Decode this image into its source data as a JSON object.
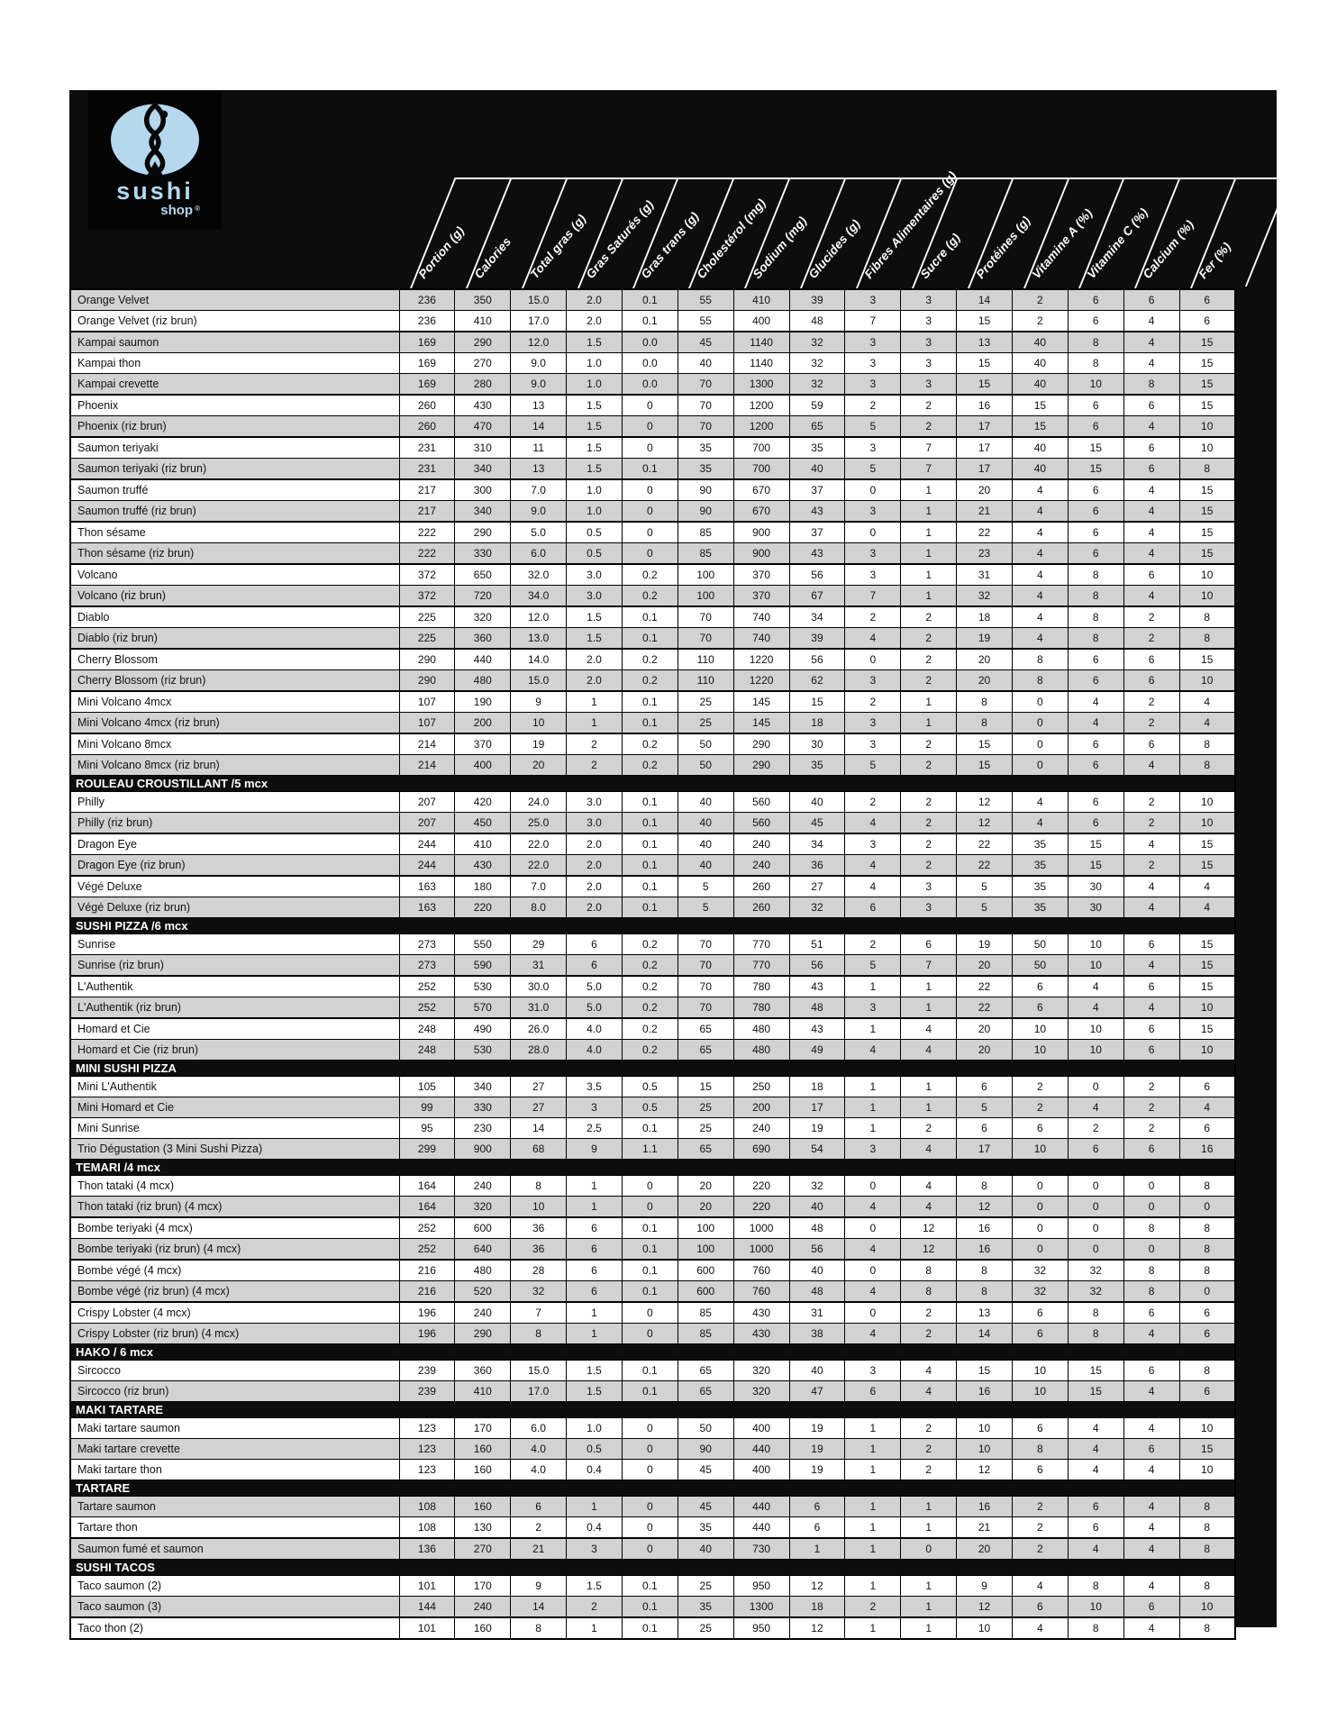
{
  "brand": {
    "wordmark_top": "sushi",
    "wordmark_bottom": "shop",
    "registered_mark": "®"
  },
  "colors": {
    "logo_blue": "#b5d8ee",
    "row_gray": "#d2d2d2",
    "band_black": "#0d0d0d",
    "row_white": "#ffffff"
  },
  "columns": [
    "Portion (g)",
    "Calories",
    "Total gras (g)",
    "Gras Saturés (g)",
    "Gras trans (g)",
    "Cholestérol (mg)",
    "Sodium (mg)",
    "Glucides (g)",
    "Fibres Alimentaires (g)",
    "Sucre (g)",
    "Protéines (g)",
    "Vitamine A (%)",
    "Vitamine C (%)",
    "Calcium (%)",
    "Fer (%)"
  ],
  "rows": [
    {
      "t": "i",
      "n": "Orange Velvet",
      "v": [
        "236",
        "350",
        "15.0",
        "2.0",
        "0.1",
        "55",
        "410",
        "39",
        "3",
        "3",
        "14",
        "2",
        "6",
        "6",
        "6"
      ]
    },
    {
      "t": "i",
      "n": "Orange Velvet (riz brun)",
      "v": [
        "236",
        "410",
        "17.0",
        "2.0",
        "0.1",
        "55",
        "400",
        "48",
        "7",
        "3",
        "15",
        "2",
        "6",
        "4",
        "6"
      ]
    },
    {
      "t": "i",
      "sep": true,
      "n": "Kampai saumon",
      "v": [
        "169",
        "290",
        "12.0",
        "1.5",
        "0.0",
        "45",
        "1140",
        "32",
        "3",
        "3",
        "13",
        "40",
        "8",
        "4",
        "15"
      ]
    },
    {
      "t": "i",
      "n": "Kampai thon",
      "v": [
        "169",
        "270",
        "9.0",
        "1.0",
        "0.0",
        "40",
        "1140",
        "32",
        "3",
        "3",
        "15",
        "40",
        "8",
        "4",
        "15"
      ]
    },
    {
      "t": "i",
      "n": "Kampai crevette",
      "v": [
        "169",
        "280",
        "9.0",
        "1.0",
        "0.0",
        "70",
        "1300",
        "32",
        "3",
        "3",
        "15",
        "40",
        "10",
        "8",
        "15"
      ]
    },
    {
      "t": "i",
      "sep": true,
      "n": "Phoenix",
      "v": [
        "260",
        "430",
        "13",
        "1.5",
        "0",
        "70",
        "1200",
        "59",
        "2",
        "2",
        "16",
        "15",
        "6",
        "6",
        "15"
      ]
    },
    {
      "t": "i",
      "n": "Phoenix (riz brun)",
      "v": [
        "260",
        "470",
        "14",
        "1.5",
        "0",
        "70",
        "1200",
        "65",
        "5",
        "2",
        "17",
        "15",
        "6",
        "4",
        "10"
      ]
    },
    {
      "t": "i",
      "sep": true,
      "n": "Saumon teriyaki",
      "v": [
        "231",
        "310",
        "11",
        "1.5",
        "0",
        "35",
        "700",
        "35",
        "3",
        "7",
        "17",
        "40",
        "15",
        "6",
        "10"
      ]
    },
    {
      "t": "i",
      "n": "Saumon teriyaki (riz brun)",
      "v": [
        "231",
        "340",
        "13",
        "1.5",
        "0.1",
        "35",
        "700",
        "40",
        "5",
        "7",
        "17",
        "40",
        "15",
        "6",
        "8"
      ]
    },
    {
      "t": "i",
      "sep": true,
      "n": "Saumon truffé",
      "v": [
        "217",
        "300",
        "7.0",
        "1.0",
        "0",
        "90",
        "670",
        "37",
        "0",
        "1",
        "20",
        "4",
        "6",
        "4",
        "15"
      ]
    },
    {
      "t": "i",
      "n": "Saumon truffé  (riz brun)",
      "v": [
        "217",
        "340",
        "9.0",
        "1.0",
        "0",
        "90",
        "670",
        "43",
        "3",
        "1",
        "21",
        "4",
        "6",
        "4",
        "15"
      ]
    },
    {
      "t": "i",
      "sep": true,
      "n": "Thon sésame",
      "v": [
        "222",
        "290",
        "5.0",
        "0.5",
        "0",
        "85",
        "900",
        "37",
        "0",
        "1",
        "22",
        "4",
        "6",
        "4",
        "15"
      ]
    },
    {
      "t": "i",
      "n": "Thon sésame (riz brun)",
      "v": [
        "222",
        "330",
        "6.0",
        "0.5",
        "0",
        "85",
        "900",
        "43",
        "3",
        "1",
        "23",
        "4",
        "6",
        "4",
        "15"
      ]
    },
    {
      "t": "i",
      "sep": true,
      "n": "Volcano",
      "v": [
        "372",
        "650",
        "32.0",
        "3.0",
        "0.2",
        "100",
        "370",
        "56",
        "3",
        "1",
        "31",
        "4",
        "8",
        "6",
        "10"
      ]
    },
    {
      "t": "i",
      "n": "Volcano (riz brun)",
      "v": [
        "372",
        "720",
        "34.0",
        "3.0",
        "0.2",
        "100",
        "370",
        "67",
        "7",
        "1",
        "32",
        "4",
        "8",
        "4",
        "10"
      ]
    },
    {
      "t": "i",
      "sep": true,
      "n": "Diablo",
      "v": [
        "225",
        "320",
        "12.0",
        "1.5",
        "0.1",
        "70",
        "740",
        "34",
        "2",
        "2",
        "18",
        "4",
        "8",
        "2",
        "8"
      ]
    },
    {
      "t": "i",
      "n": "Diablo (riz brun)",
      "v": [
        "225",
        "360",
        "13.0",
        "1.5",
        "0.1",
        "70",
        "740",
        "39",
        "4",
        "2",
        "19",
        "4",
        "8",
        "2",
        "8"
      ]
    },
    {
      "t": "i",
      "sep": true,
      "n": "Cherry Blossom",
      "v": [
        "290",
        "440",
        "14.0",
        "2.0",
        "0.2",
        "110",
        "1220",
        "56",
        "0",
        "2",
        "20",
        "8",
        "6",
        "6",
        "15"
      ]
    },
    {
      "t": "i",
      "n": "Cherry Blossom (riz brun)",
      "v": [
        "290",
        "480",
        "15.0",
        "2.0",
        "0.2",
        "110",
        "1220",
        "62",
        "3",
        "2",
        "20",
        "8",
        "6",
        "6",
        "10"
      ]
    },
    {
      "t": "i",
      "sep": true,
      "n": "Mini Volcano 4mcx",
      "v": [
        "107",
        "190",
        "9",
        "1",
        "0.1",
        "25",
        "145",
        "15",
        "2",
        "1",
        "8",
        "0",
        "4",
        "2",
        "4"
      ]
    },
    {
      "t": "i",
      "n": "Mini Volcano 4mcx (riz brun)",
      "v": [
        "107",
        "200",
        "10",
        "1",
        "0.1",
        "25",
        "145",
        "18",
        "3",
        "1",
        "8",
        "0",
        "4",
        "2",
        "4"
      ]
    },
    {
      "t": "i",
      "sep": true,
      "n": "Mini Volcano 8mcx",
      "v": [
        "214",
        "370",
        "19",
        "2",
        "0.2",
        "50",
        "290",
        "30",
        "3",
        "2",
        "15",
        "0",
        "6",
        "6",
        "8"
      ]
    },
    {
      "t": "i",
      "n": "Mini Volcano 8mcx (riz brun)",
      "v": [
        "214",
        "400",
        "20",
        "2",
        "0.2",
        "50",
        "290",
        "35",
        "5",
        "2",
        "15",
        "0",
        "6",
        "4",
        "8"
      ]
    },
    {
      "t": "s",
      "n": "ROULEAU CROUSTILLANT /5 mcx"
    },
    {
      "t": "i",
      "n": "Philly",
      "v": [
        "207",
        "420",
        "24.0",
        "3.0",
        "0.1",
        "40",
        "560",
        "40",
        "2",
        "2",
        "12",
        "4",
        "6",
        "2",
        "10"
      ]
    },
    {
      "t": "i",
      "n": "Philly (riz brun)",
      "v": [
        "207",
        "450",
        "25.0",
        "3.0",
        "0.1",
        "40",
        "560",
        "45",
        "4",
        "2",
        "12",
        "4",
        "6",
        "2",
        "10"
      ]
    },
    {
      "t": "i",
      "sep": true,
      "n": "Dragon Eye",
      "v": [
        "244",
        "410",
        "22.0",
        "2.0",
        "0.1",
        "40",
        "240",
        "34",
        "3",
        "2",
        "22",
        "35",
        "15",
        "4",
        "15"
      ]
    },
    {
      "t": "i",
      "n": "Dragon Eye (riz brun)",
      "v": [
        "244",
        "430",
        "22.0",
        "2.0",
        "0.1",
        "40",
        "240",
        "36",
        "4",
        "2",
        "22",
        "35",
        "15",
        "2",
        "15"
      ]
    },
    {
      "t": "i",
      "sep": true,
      "n": "Végé Deluxe",
      "v": [
        "163",
        "180",
        "7.0",
        "2.0",
        "0.1",
        "5",
        "260",
        "27",
        "4",
        "3",
        "5",
        "35",
        "30",
        "4",
        "4"
      ]
    },
    {
      "t": "i",
      "n": "Végé Deluxe (riz brun)",
      "v": [
        "163",
        "220",
        "8.0",
        "2.0",
        "0.1",
        "5",
        "260",
        "32",
        "6",
        "3",
        "5",
        "35",
        "30",
        "4",
        "4"
      ]
    },
    {
      "t": "s",
      "n": "SUSHI PIZZA /6 mcx"
    },
    {
      "t": "i",
      "n": "Sunrise",
      "v": [
        "273",
        "550",
        "29",
        "6",
        "0.2",
        "70",
        "770",
        "51",
        "2",
        "6",
        "19",
        "50",
        "10",
        "6",
        "15"
      ]
    },
    {
      "t": "i",
      "n": "Sunrise (riz brun)",
      "v": [
        "273",
        "590",
        "31",
        "6",
        "0.2",
        "70",
        "770",
        "56",
        "5",
        "7",
        "20",
        "50",
        "10",
        "4",
        "15"
      ]
    },
    {
      "t": "i",
      "sep": true,
      "n": "L'Authentik",
      "v": [
        "252",
        "530",
        "30.0",
        "5.0",
        "0.2",
        "70",
        "780",
        "43",
        "1",
        "1",
        "22",
        "6",
        "4",
        "6",
        "15"
      ]
    },
    {
      "t": "i",
      "n": "L'Authentik (riz brun)",
      "v": [
        "252",
        "570",
        "31.0",
        "5.0",
        "0.2",
        "70",
        "780",
        "48",
        "3",
        "1",
        "22",
        "6",
        "4",
        "4",
        "10"
      ]
    },
    {
      "t": "i",
      "sep": true,
      "n": "Homard et Cie",
      "v": [
        "248",
        "490",
        "26.0",
        "4.0",
        "0.2",
        "65",
        "480",
        "43",
        "1",
        "4",
        "20",
        "10",
        "10",
        "6",
        "15"
      ]
    },
    {
      "t": "i",
      "n": "Homard et Cie (riz brun)",
      "v": [
        "248",
        "530",
        "28.0",
        "4.0",
        "0.2",
        "65",
        "480",
        "49",
        "4",
        "4",
        "20",
        "10",
        "10",
        "6",
        "10"
      ]
    },
    {
      "t": "s",
      "n": "MINI SUSHI PIZZA"
    },
    {
      "t": "i",
      "n": "Mini L'Authentik",
      "v": [
        "105",
        "340",
        "27",
        "3.5",
        "0.5",
        "15",
        "250",
        "18",
        "1",
        "1",
        "6",
        "2",
        "0",
        "2",
        "6"
      ]
    },
    {
      "t": "i",
      "n": "Mini Homard et Cie",
      "v": [
        "99",
        "330",
        "27",
        "3",
        "0.5",
        "25",
        "200",
        "17",
        "1",
        "1",
        "5",
        "2",
        "4",
        "2",
        "4"
      ]
    },
    {
      "t": "i",
      "n": "Mini Sunrise",
      "v": [
        "95",
        "230",
        "14",
        "2.5",
        "0.1",
        "25",
        "240",
        "19",
        "1",
        "2",
        "6",
        "6",
        "2",
        "2",
        "6"
      ]
    },
    {
      "t": "i",
      "n": "Trio Dégustation (3 Mini Sushi Pizza)",
      "v": [
        "299",
        "900",
        "68",
        "9",
        "1.1",
        "65",
        "690",
        "54",
        "3",
        "4",
        "17",
        "10",
        "6",
        "6",
        "16"
      ]
    },
    {
      "t": "s",
      "n": "TEMARI /4 mcx"
    },
    {
      "t": "i",
      "n": "Thon tataki (4 mcx)",
      "v": [
        "164",
        "240",
        "8",
        "1",
        "0",
        "20",
        "220",
        "32",
        "0",
        "4",
        "8",
        "0",
        "0",
        "0",
        "8"
      ]
    },
    {
      "t": "i",
      "n": "Thon tataki (riz brun) (4 mcx)",
      "v": [
        "164",
        "320",
        "10",
        "1",
        "0",
        "20",
        "220",
        "40",
        "4",
        "4",
        "12",
        "0",
        "0",
        "0",
        "0"
      ]
    },
    {
      "t": "i",
      "sep": true,
      "n": "Bombe teriyaki (4 mcx)",
      "v": [
        "252",
        "600",
        "36",
        "6",
        "0.1",
        "100",
        "1000",
        "48",
        "0",
        "12",
        "16",
        "0",
        "0",
        "8",
        "8"
      ]
    },
    {
      "t": "i",
      "n": "Bombe teriyaki (riz brun) (4 mcx)",
      "v": [
        "252",
        "640",
        "36",
        "6",
        "0.1",
        "100",
        "1000",
        "56",
        "4",
        "12",
        "16",
        "0",
        "0",
        "0",
        "8"
      ]
    },
    {
      "t": "i",
      "sep": true,
      "n": "Bombe végé (4 mcx)",
      "v": [
        "216",
        "480",
        "28",
        "6",
        "0.1",
        "600",
        "760",
        "40",
        "0",
        "8",
        "8",
        "32",
        "32",
        "8",
        "8"
      ]
    },
    {
      "t": "i",
      "n": "Bombe végé (riz brun) (4 mcx)",
      "v": [
        "216",
        "520",
        "32",
        "6",
        "0.1",
        "600",
        "760",
        "48",
        "4",
        "8",
        "8",
        "32",
        "32",
        "8",
        "0"
      ]
    },
    {
      "t": "i",
      "sep": true,
      "n": "Crispy Lobster (4 mcx)",
      "v": [
        "196",
        "240",
        "7",
        "1",
        "0",
        "85",
        "430",
        "31",
        "0",
        "2",
        "13",
        "6",
        "8",
        "6",
        "6"
      ]
    },
    {
      "t": "i",
      "n": "Crispy Lobster (riz brun) (4 mcx)",
      "v": [
        "196",
        "290",
        "8",
        "1",
        "0",
        "85",
        "430",
        "38",
        "4",
        "2",
        "14",
        "6",
        "8",
        "4",
        "6"
      ]
    },
    {
      "t": "s",
      "n": "HAKO / 6 mcx"
    },
    {
      "t": "i",
      "n": "Sircocco",
      "v": [
        "239",
        "360",
        "15.0",
        "1.5",
        "0.1",
        "65",
        "320",
        "40",
        "3",
        "4",
        "15",
        "10",
        "15",
        "6",
        "8"
      ]
    },
    {
      "t": "i",
      "n": "Sircocco  (riz brun)",
      "v": [
        "239",
        "410",
        "17.0",
        "1.5",
        "0.1",
        "65",
        "320",
        "47",
        "6",
        "4",
        "16",
        "10",
        "15",
        "4",
        "6"
      ]
    },
    {
      "t": "s",
      "n": "MAKI TARTARE"
    },
    {
      "t": "i",
      "n": "Maki tartare saumon",
      "v": [
        "123",
        "170",
        "6.0",
        "1.0",
        "0",
        "50",
        "400",
        "19",
        "1",
        "2",
        "10",
        "6",
        "4",
        "4",
        "10"
      ]
    },
    {
      "t": "i",
      "n": "Maki tartare crevette",
      "v": [
        "123",
        "160",
        "4.0",
        "0.5",
        "0",
        "90",
        "440",
        "19",
        "1",
        "2",
        "10",
        "8",
        "4",
        "6",
        "15"
      ]
    },
    {
      "t": "i",
      "n": "Maki tartare thon",
      "v": [
        "123",
        "160",
        "4.0",
        "0.4",
        "0",
        "45",
        "400",
        "19",
        "1",
        "2",
        "12",
        "6",
        "4",
        "4",
        "10"
      ]
    },
    {
      "t": "s",
      "n": "TARTARE"
    },
    {
      "t": "i",
      "n": "Tartare saumon",
      "v": [
        "108",
        "160",
        "6",
        "1",
        "0",
        "45",
        "440",
        "6",
        "1",
        "1",
        "16",
        "2",
        "6",
        "4",
        "8"
      ]
    },
    {
      "t": "i",
      "n": "Tartare thon",
      "v": [
        "108",
        "130",
        "2",
        "0.4",
        "0",
        "35",
        "440",
        "6",
        "1",
        "1",
        "21",
        "2",
        "6",
        "4",
        "8"
      ]
    },
    {
      "t": "i",
      "sep": true,
      "n": "Saumon fumé et saumon",
      "v": [
        "136",
        "270",
        "21",
        "3",
        "0",
        "40",
        "730",
        "1",
        "1",
        "0",
        "20",
        "2",
        "4",
        "4",
        "8"
      ]
    },
    {
      "t": "s",
      "n": "SUSHI TACOS"
    },
    {
      "t": "i",
      "n": "Taco saumon (2)",
      "v": [
        "101",
        "170",
        "9",
        "1.5",
        "0.1",
        "25",
        "950",
        "12",
        "1",
        "1",
        "9",
        "4",
        "8",
        "4",
        "8"
      ]
    },
    {
      "t": "i",
      "n": "Taco saumon (3)",
      "v": [
        "144",
        "240",
        "14",
        "2",
        "0.1",
        "35",
        "1300",
        "18",
        "2",
        "1",
        "12",
        "6",
        "10",
        "6",
        "10"
      ]
    },
    {
      "t": "i",
      "sep": true,
      "n": "Taco thon (2)",
      "v": [
        "101",
        "160",
        "8",
        "1",
        "0.1",
        "25",
        "950",
        "12",
        "1",
        "1",
        "10",
        "4",
        "8",
        "4",
        "8"
      ]
    }
  ]
}
